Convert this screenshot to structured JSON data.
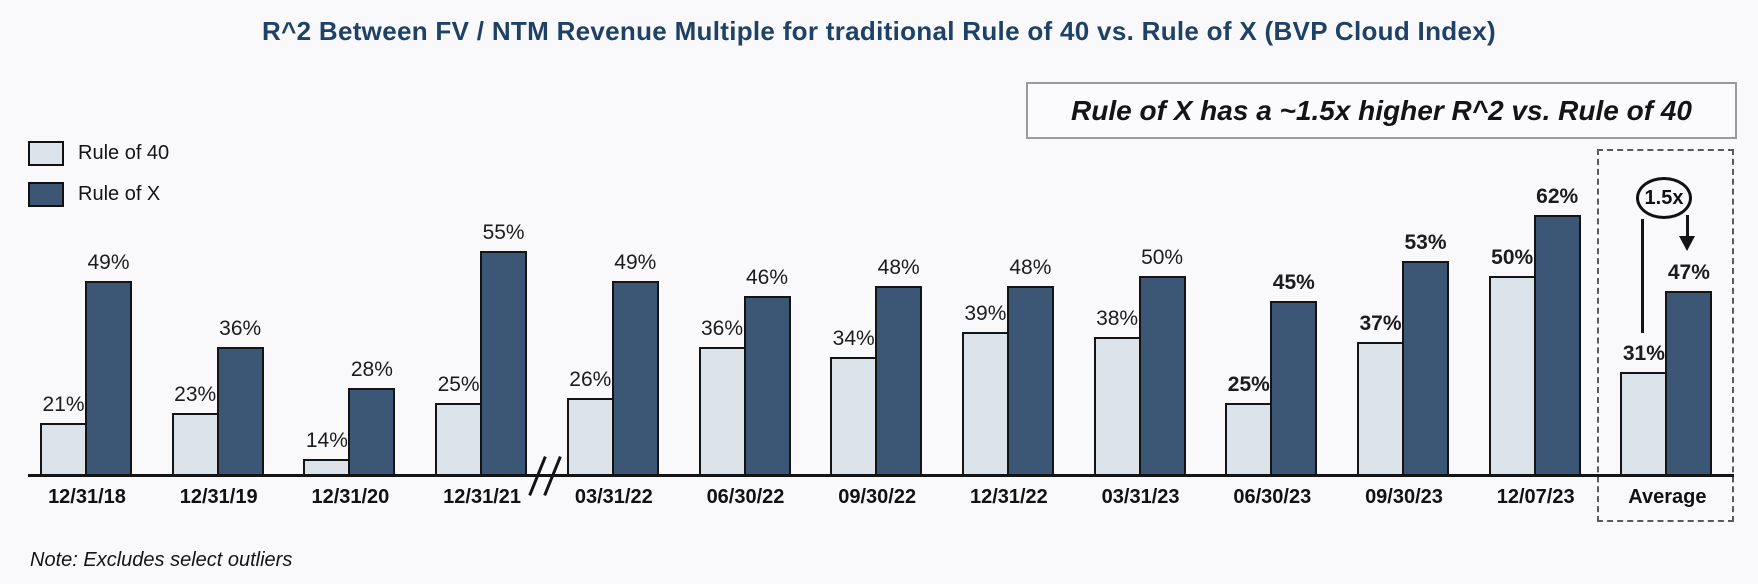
{
  "title": "R^2 Between FV / NTM Revenue Multiple for traditional Rule of 40 vs. Rule of X (BVP Cloud Index)",
  "callout": {
    "text": "Rule of X has a ~1.5x higher R^2 vs. Rule of 40"
  },
  "legend": {
    "items": [
      {
        "label": "Rule of 40",
        "color": "#dce3ea"
      },
      {
        "label": "Rule of X",
        "color": "#3c5676"
      }
    ]
  },
  "annotation": {
    "label": "1.5x"
  },
  "note": "Note: Excludes select outliers",
  "colors": {
    "rule_of_40": "#dce3ea",
    "rule_of_x": "#3c5676",
    "bar_border": "#141414",
    "title_text": "#1e4265",
    "background": "#f9f8fb"
  },
  "chart_data": {
    "type": "bar",
    "title": "R^2 Between FV / NTM Revenue Multiple for traditional Rule of 40 vs. Rule of X (BVP Cloud Index)",
    "categories": [
      "12/31/18",
      "12/31/19",
      "12/31/20",
      "12/31/21",
      "03/31/22",
      "06/30/22",
      "09/30/22",
      "12/31/22",
      "03/31/23",
      "06/30/23",
      "09/30/23",
      "12/07/23",
      "Average"
    ],
    "series": [
      {
        "name": "Rule of 40",
        "values": [
          21,
          23,
          14,
          25,
          26,
          36,
          34,
          39,
          38,
          25,
          37,
          50,
          31
        ]
      },
      {
        "name": "Rule of X",
        "values": [
          49,
          36,
          28,
          55,
          49,
          46,
          48,
          48,
          50,
          45,
          53,
          62,
          47
        ]
      }
    ],
    "value_suffix": "%",
    "data_labels": true,
    "bold_labels_from": "06/30/23",
    "axis_break_after": "12/31/21",
    "highlighted_category": "Average",
    "legend_position": "top-left",
    "grid": false,
    "y_axis_visible": false
  }
}
